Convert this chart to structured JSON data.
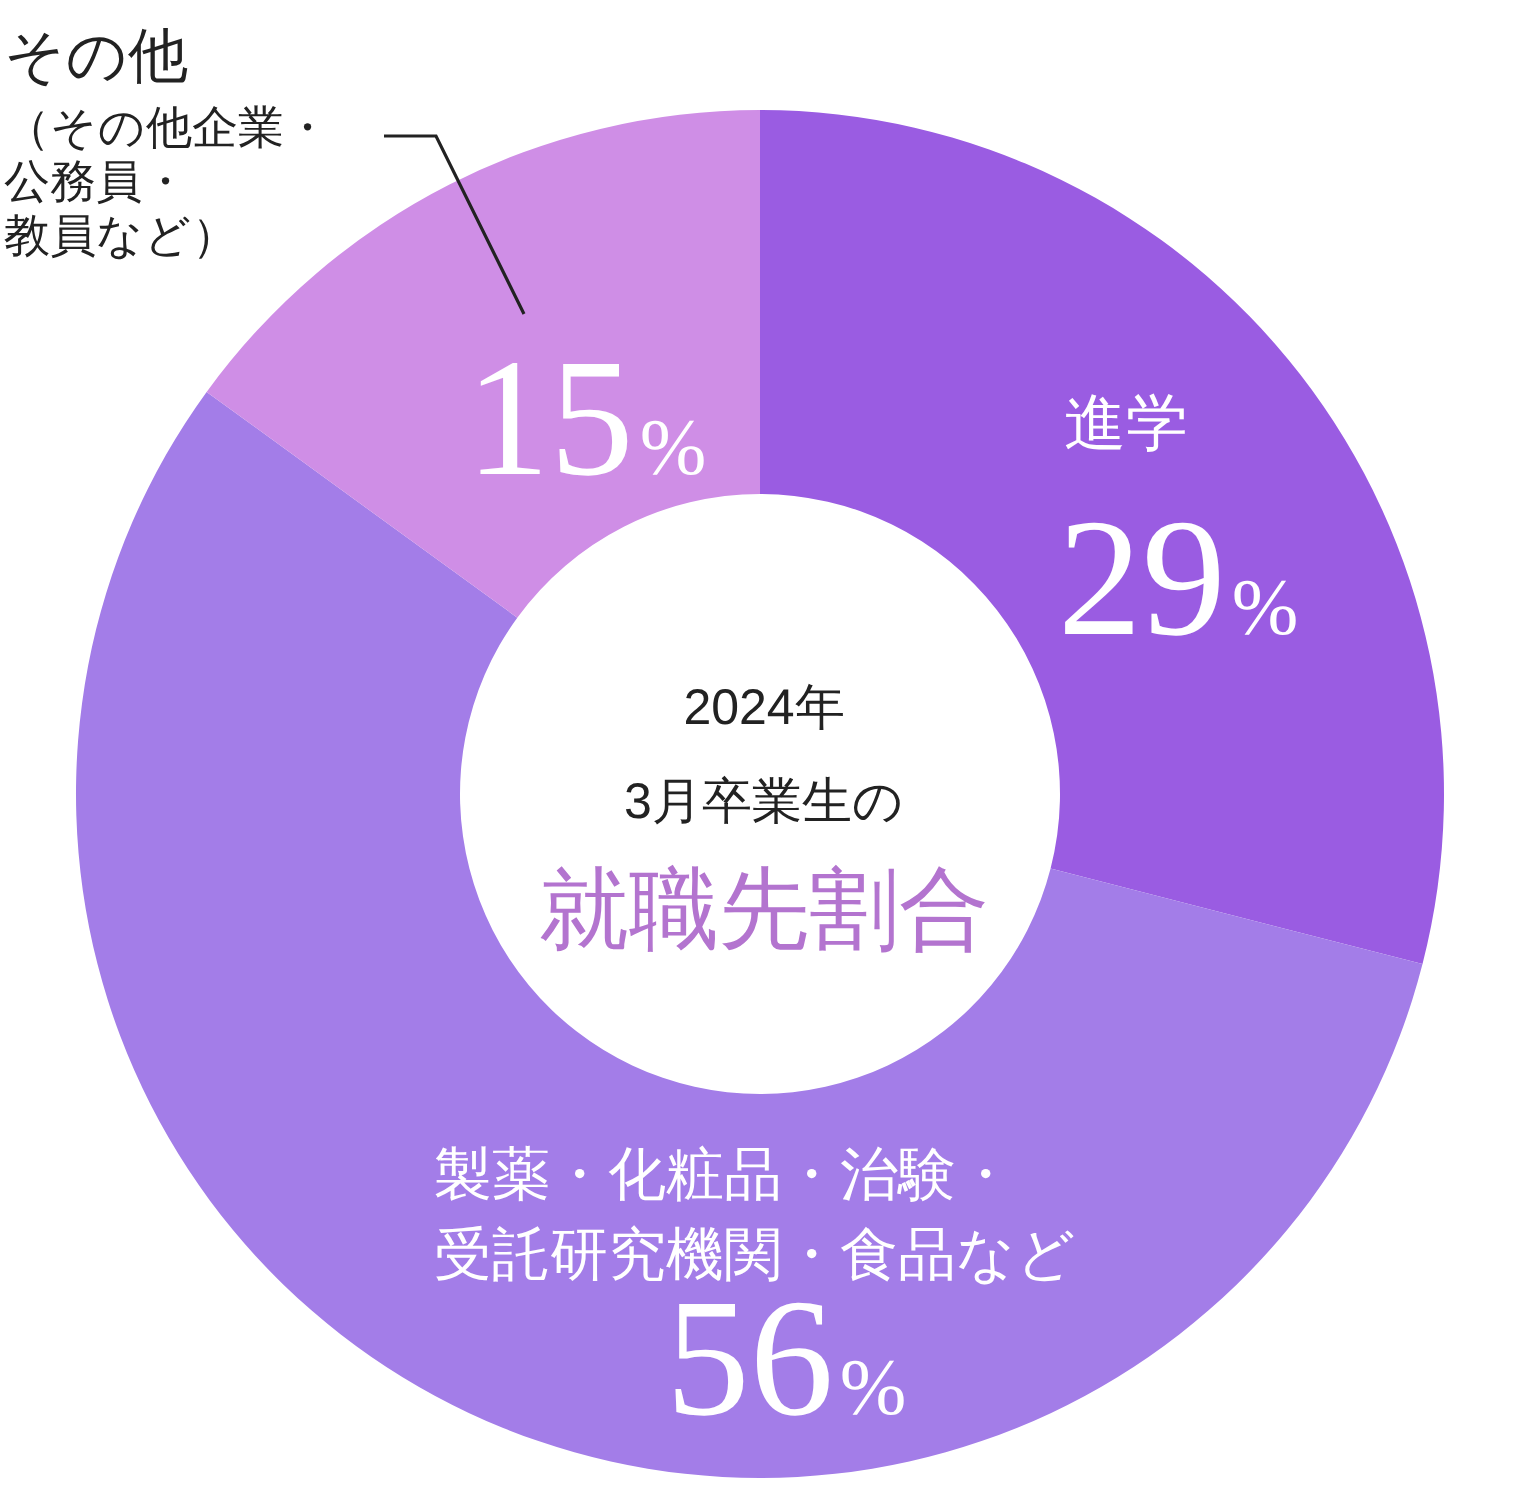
{
  "chart_data": {
    "type": "donut",
    "title": "2024年3月卒業生の",
    "subtitle": "就職先割合",
    "categories": [
      "進学",
      "製薬・化粧品・治験・受託研究機関・食品など",
      "その他（その他企業・公務員・教員など）"
    ],
    "values": [
      29,
      56,
      15
    ],
    "colors": [
      "#9a5ce2",
      "#a37de8",
      "#cf8ee6"
    ],
    "value_labels": [
      "29%",
      "56%",
      "15%"
    ]
  }
}
